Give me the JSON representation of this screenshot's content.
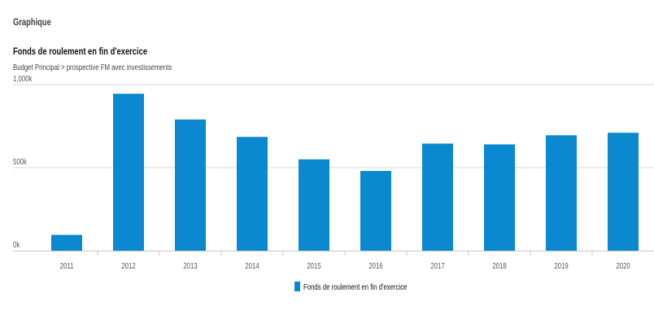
{
  "section": {
    "title": "Graphique"
  },
  "chart_data": {
    "type": "bar",
    "title": "Fonds de roulement en fin d'exercice",
    "subtitle": "Budget Principal > prospective FM avec investissements",
    "categories": [
      "2011",
      "2012",
      "2013",
      "2014",
      "2015",
      "2016",
      "2017",
      "2018",
      "2019",
      "2020"
    ],
    "series": [
      {
        "name": "Fonds de roulement en fin d'exercice",
        "values": [
          95000,
          945000,
          790000,
          685000,
          550000,
          480000,
          645000,
          640000,
          695000,
          710000
        ],
        "color": "#0a88d0"
      }
    ],
    "ylim": [
      0,
      1000000
    ],
    "yticks": [
      {
        "value": 0,
        "label": "0k"
      },
      {
        "value": 500000,
        "label": "500k"
      },
      {
        "value": 1000000,
        "label": "1,000k"
      }
    ],
    "grid": true,
    "legend_position": "bottom-center"
  },
  "colors": {
    "bar": "#0a88d0",
    "grid": "#d9d9d9",
    "axis": "#c8c8c8"
  }
}
